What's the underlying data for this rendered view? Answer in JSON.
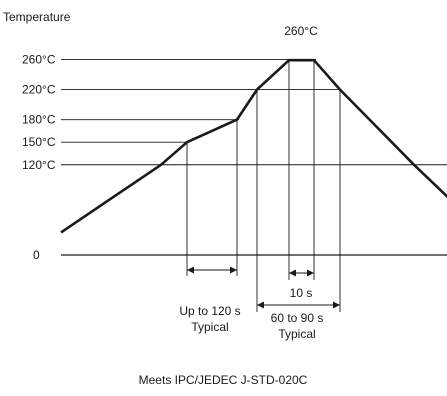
{
  "chart_data": {
    "type": "line",
    "ylabel": "Temperature",
    "caption": "Meets IPC/JEDEC J-STD-020C",
    "y_ticks": [
      {
        "label": "260°C",
        "value": 260
      },
      {
        "label": "220°C",
        "value": 220
      },
      {
        "label": "180°C",
        "value": 180
      },
      {
        "label": "150°C",
        "value": 150
      },
      {
        "label": "120°C",
        "value": 120
      },
      {
        "label": "0",
        "value": 0
      }
    ],
    "x_units": "s",
    "series": [
      {
        "points": [
          {
            "x": 0,
            "y": 30
          },
          {
            "x": 100,
            "y": 120
          },
          {
            "x": 126,
            "y": 150
          },
          {
            "x": 176,
            "y": 180
          },
          {
            "x": 196,
            "y": 220
          },
          {
            "x": 228,
            "y": 259
          },
          {
            "x": 253,
            "y": 259
          },
          {
            "x": 279,
            "y": 220
          },
          {
            "x": 353,
            "y": 120
          },
          {
            "x": 390,
            "y": 73
          }
        ]
      }
    ],
    "peak_label": "260°C",
    "annotations": {
      "preheat": {
        "line1": "Up to 120 s",
        "line2": "Typical"
      },
      "peak_dwell": {
        "line1": "10 s"
      },
      "above_220": {
        "line1": "60 to 90 s",
        "line2": "Typical"
      }
    }
  }
}
